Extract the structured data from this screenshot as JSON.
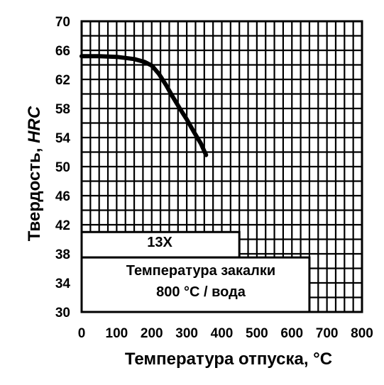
{
  "chart_data": {
    "type": "line",
    "series": [
      {
        "name": "13X",
        "x": [
          0,
          50,
          100,
          150,
          180,
          200,
          220,
          240,
          260,
          280,
          300,
          320,
          340,
          355
        ],
        "y": [
          65.2,
          65.2,
          65.1,
          64.8,
          64.4,
          63.9,
          62.8,
          61.3,
          59.6,
          58.0,
          56.5,
          54.8,
          53.2,
          51.6
        ]
      }
    ],
    "xlim": [
      0,
      800
    ],
    "ylim": [
      30,
      70
    ],
    "x_ticks": [
      "0",
      "100",
      "200",
      "300",
      "400",
      "500",
      "600",
      "700",
      "800"
    ],
    "y_ticks": [
      "70",
      "66",
      "62",
      "58",
      "54",
      "50",
      "46",
      "42",
      "38",
      "34",
      "30"
    ],
    "xlabel": "Температура отпуска, °C",
    "ylabel_prefix": "Твердость, ",
    "ylabel_unit": "HRC",
    "grid": true
  },
  "annotations": {
    "steel_grade": "13X",
    "quench_line1": "Температура закалки",
    "quench_line2": "800 °C / вода"
  }
}
